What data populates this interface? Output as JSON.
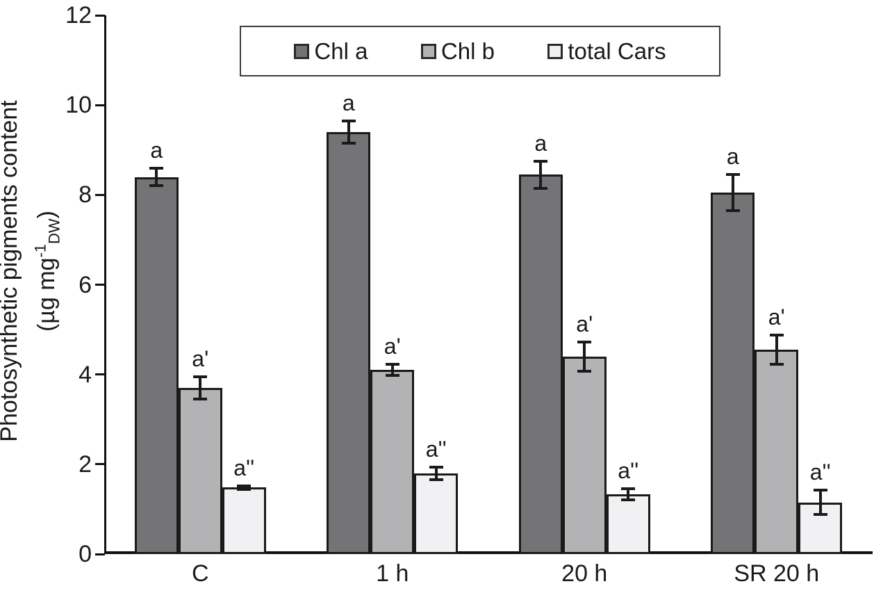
{
  "figure": {
    "ylabel_line1": "Photosynthetic pigments content",
    "unit_prefix": "(µg mg",
    "unit_sup": "-1",
    "unit_sub": "DW",
    "unit_suffix": ")"
  },
  "chart_data": {
    "type": "bar",
    "title": "",
    "xlabel": "",
    "ylabel": "Photosynthetic pigments content (µg mg-1 DW)",
    "categories": [
      "C",
      "1 h",
      "20 h",
      "SR 20 h"
    ],
    "series": [
      {
        "name": "Chl a",
        "color": "#747477",
        "values": [
          8.4,
          9.4,
          8.45,
          8.05
        ],
        "errors": [
          0.2,
          0.25,
          0.3,
          0.4
        ],
        "sig_labels": [
          "a",
          "a",
          "a",
          "a"
        ]
      },
      {
        "name": "Chl b",
        "color": "#b3b3b6",
        "values": [
          3.7,
          4.1,
          4.4,
          4.55
        ],
        "errors": [
          0.25,
          0.12,
          0.32,
          0.33
        ],
        "sig_labels": [
          "a'",
          "a'",
          "a'",
          "a'"
        ]
      },
      {
        "name": "total Cars",
        "color": "#f1f1f3",
        "values": [
          1.48,
          1.8,
          1.33,
          1.15
        ],
        "errors": [
          0.04,
          0.14,
          0.12,
          0.27
        ],
        "sig_labels": [
          "a''",
          "a''",
          "a''",
          "a''"
        ]
      }
    ],
    "ylim": [
      0,
      12
    ],
    "yticks": [
      0,
      2,
      4,
      6,
      8,
      10,
      12
    ],
    "grid": false,
    "legend_position": "top-inside",
    "bar_border_color": "#1a1a1a",
    "error_bar_color": "#1a1a1a",
    "axis_color": "#111111"
  }
}
